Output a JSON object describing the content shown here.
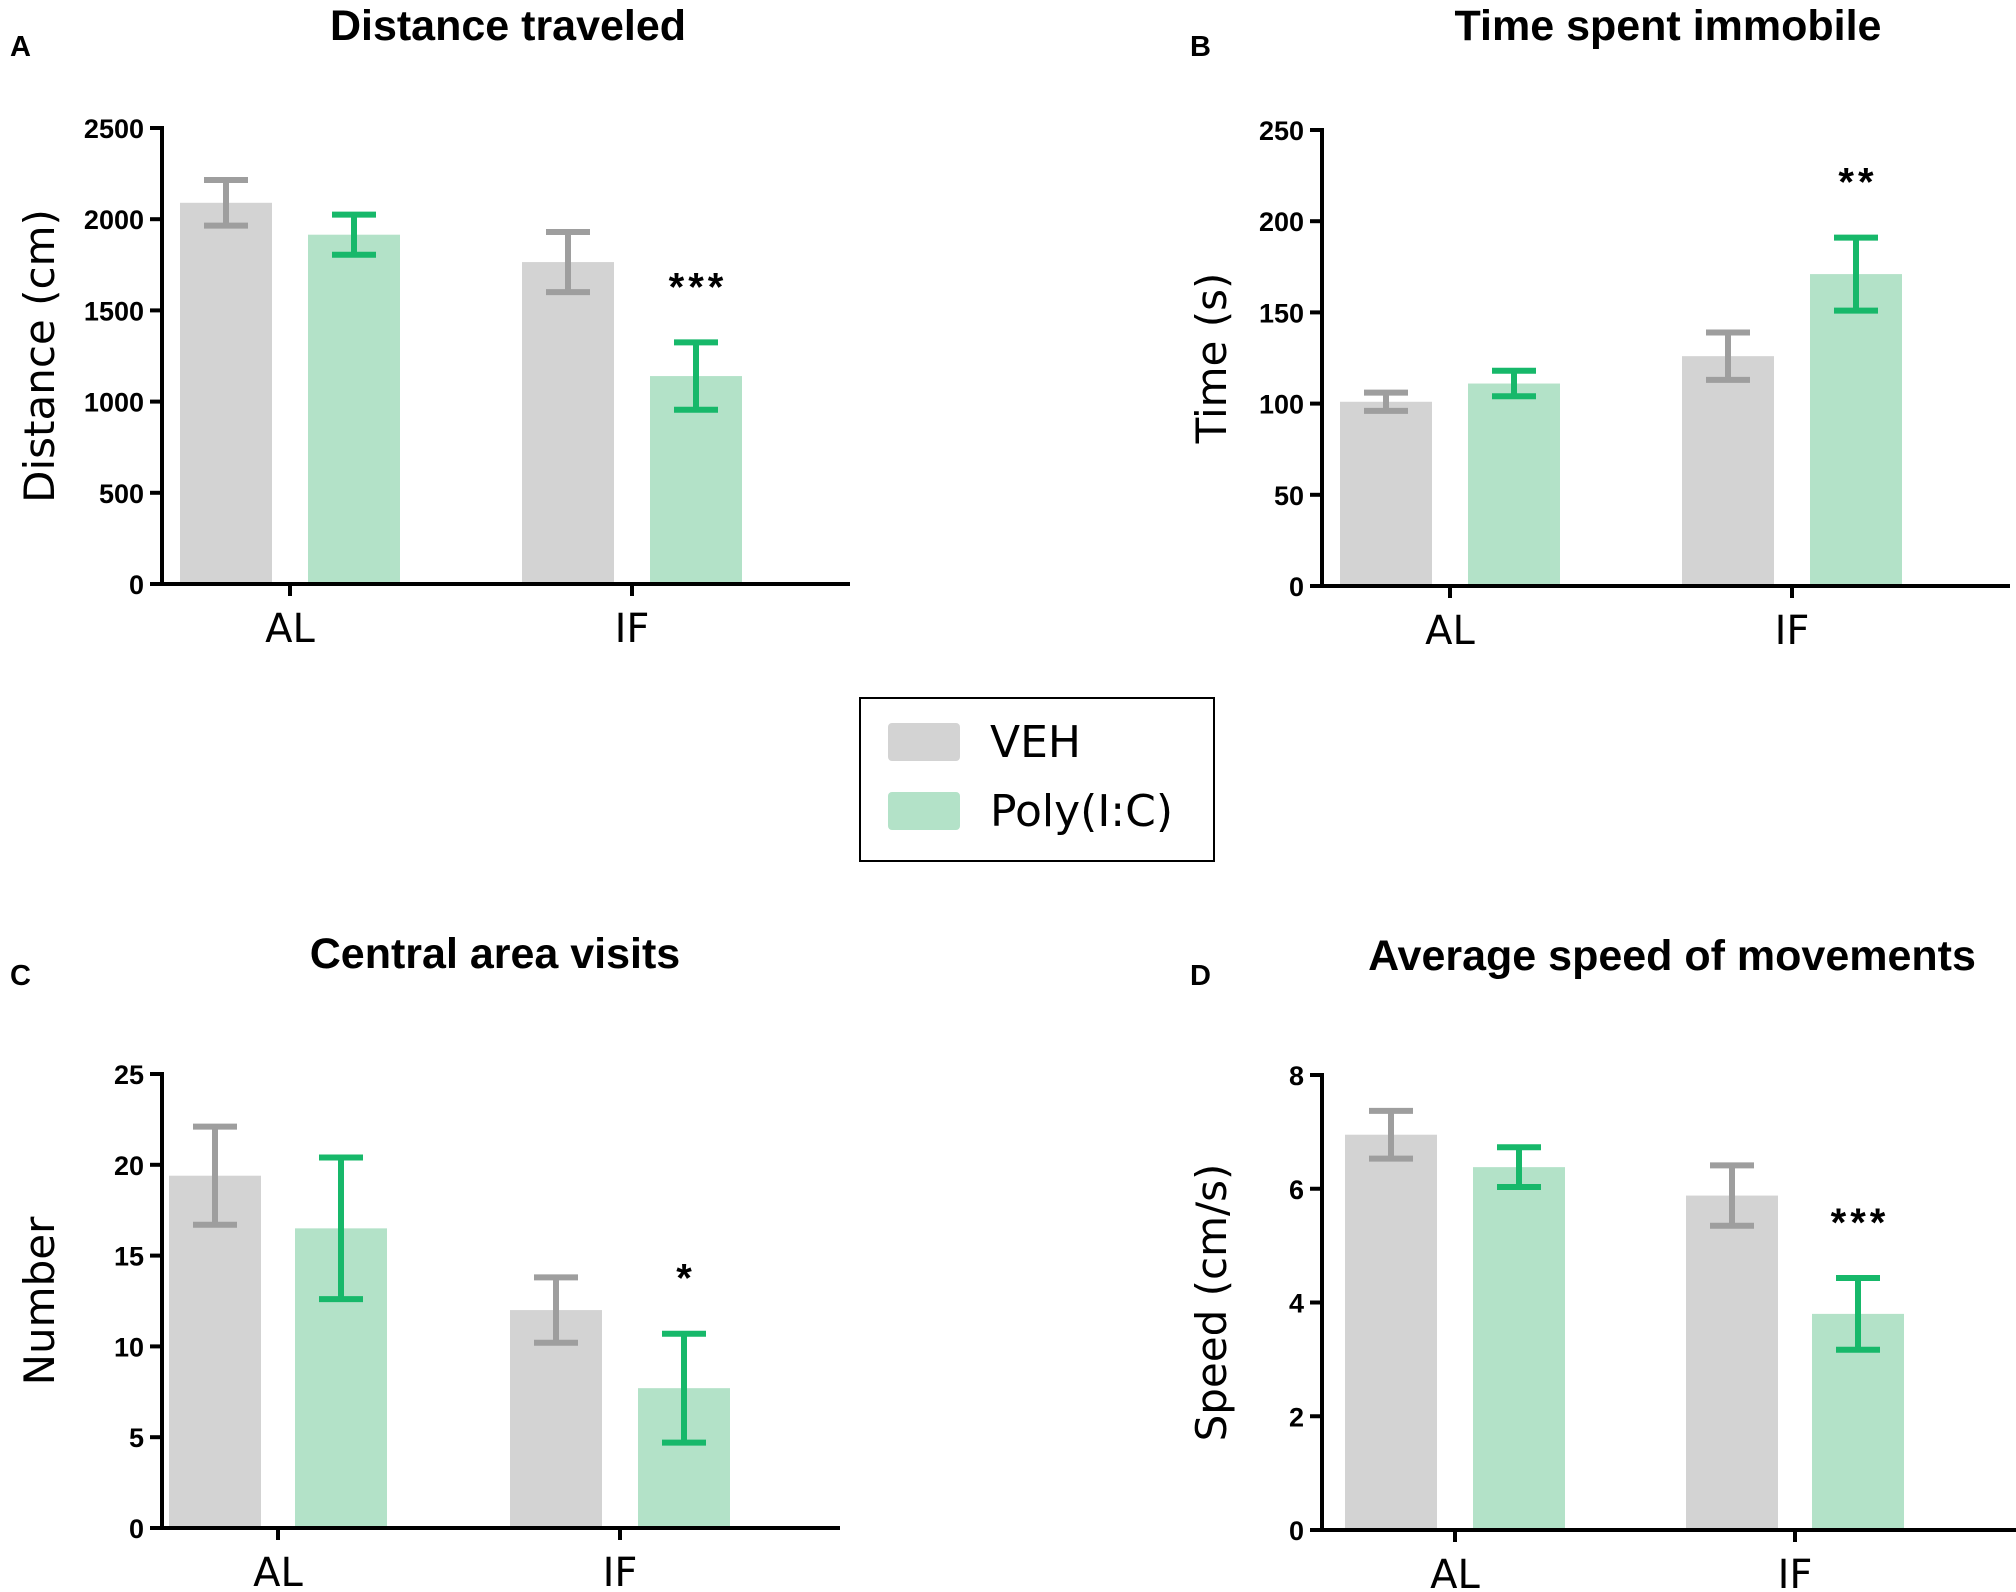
{
  "legend": {
    "items": [
      {
        "label": "VEH",
        "color": "#d3d3d3",
        "error_color": "#9e9e9e"
      },
      {
        "label": "Poly(I:C)",
        "color": "#b3e2c8",
        "error_color": "#17b86a"
      }
    ]
  },
  "chart_data": [
    {
      "panel": "A",
      "type": "bar",
      "title": "Distance traveled",
      "xlabel": "",
      "ylabel": "Distance (cm)",
      "ylim": [
        0,
        2500
      ],
      "yticks": [
        0,
        500,
        1000,
        1500,
        2000,
        2500
      ],
      "categories": [
        "AL",
        "IF"
      ],
      "series": [
        {
          "name": "VEH",
          "values": [
            2090,
            1765
          ],
          "errors": [
            125,
            165
          ]
        },
        {
          "name": "Poly(I:C)",
          "values": [
            1915,
            1140
          ],
          "errors": [
            110,
            185
          ]
        }
      ],
      "annotations": [
        {
          "category": "IF",
          "series": "Poly(I:C)",
          "text": "***"
        }
      ]
    },
    {
      "panel": "B",
      "type": "bar",
      "title": "Time spent immobile",
      "xlabel": "",
      "ylabel": "Time (s)",
      "ylim": [
        0,
        250
      ],
      "yticks": [
        0,
        50,
        100,
        150,
        200,
        250
      ],
      "categories": [
        "AL",
        "IF"
      ],
      "series": [
        {
          "name": "VEH",
          "values": [
            101,
            126
          ],
          "errors": [
            5,
            13
          ]
        },
        {
          "name": "Poly(I:C)",
          "values": [
            111,
            171
          ],
          "errors": [
            7,
            20
          ]
        }
      ],
      "annotations": [
        {
          "category": "IF",
          "series": "Poly(I:C)",
          "text": "**"
        }
      ]
    },
    {
      "panel": "C",
      "type": "bar",
      "title": "Central area visits",
      "xlabel": "",
      "ylabel": "Number",
      "ylim": [
        0,
        25
      ],
      "yticks": [
        0,
        5,
        10,
        15,
        20,
        25
      ],
      "categories": [
        "AL",
        "IF"
      ],
      "series": [
        {
          "name": "VEH",
          "values": [
            19.4,
            12.0
          ],
          "errors": [
            2.7,
            1.8
          ]
        },
        {
          "name": "Poly(I:C)",
          "values": [
            16.5,
            7.7
          ],
          "errors": [
            3.9,
            3.0
          ]
        }
      ],
      "annotations": [
        {
          "category": "IF",
          "series": "Poly(I:C)",
          "text": "*"
        }
      ]
    },
    {
      "panel": "D",
      "type": "bar",
      "title": "Average speed of movements",
      "xlabel": "",
      "ylabel": "Speed (cm/s)",
      "ylim": [
        0,
        8
      ],
      "yticks": [
        0,
        2,
        4,
        6,
        8
      ],
      "categories": [
        "AL",
        "IF"
      ],
      "series": [
        {
          "name": "VEH",
          "values": [
            6.95,
            5.88
          ],
          "errors": [
            0.42,
            0.53
          ]
        },
        {
          "name": "Poly(I:C)",
          "values": [
            6.38,
            3.8
          ],
          "errors": [
            0.35,
            0.63
          ]
        }
      ],
      "annotations": [
        {
          "category": "IF",
          "series": "Poly(I:C)",
          "text": "***"
        }
      ]
    }
  ]
}
